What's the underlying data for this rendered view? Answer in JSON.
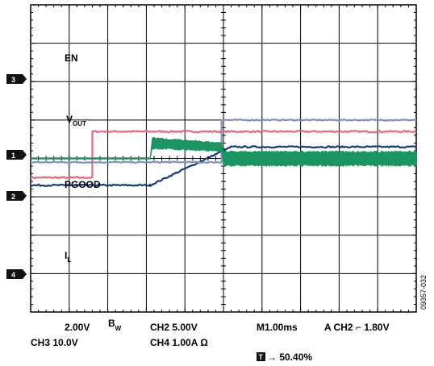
{
  "chart_data": {
    "type": "line",
    "grid": true,
    "grid_divisions": {
      "x": 10,
      "y": 8
    },
    "x_unit": "ms",
    "series": [
      {
        "name": "EN",
        "marker": "3",
        "color": "#e8667e",
        "x": [
          0,
          1.6,
          1.6,
          10
        ],
        "y": [
          -0.5,
          -0.5,
          0.7,
          0.7
        ],
        "noise": 0.02
      },
      {
        "name": "V_OUT",
        "marker": "1",
        "color": "#123c7c",
        "x": [
          0,
          3.1,
          5.2,
          10
        ],
        "y": [
          -0.7,
          -0.7,
          0.3,
          0.3
        ],
        "noise": 0.02
      },
      {
        "name": "PGOOD",
        "marker": "2",
        "color": "#7f92c0",
        "x": [
          0,
          4.95,
          4.95,
          10
        ],
        "y": [
          -0.1,
          -0.1,
          1.0,
          1.0
        ],
        "noise": 0.015
      },
      {
        "name": "I_L",
        "marker": "4",
        "color": "#1a9461",
        "x": [
          0,
          3.1,
          3.15,
          4.95,
          5.0,
          10
        ],
        "y": [
          0,
          0,
          0.4,
          0.3,
          0,
          0
        ],
        "ripple": [
          0.02,
          0.02,
          0.15,
          0.12,
          0.2,
          0.2
        ]
      }
    ]
  },
  "labels": {
    "en": "EN",
    "vout_main": "V",
    "vout_sub": "OUT",
    "pgood": "PGOOD",
    "il_main": "I",
    "il_sub": "L"
  },
  "markers": {
    "ch3": "3",
    "ch1": "1",
    "ch2": "2",
    "ch4": "4"
  },
  "readouts": {
    "ch1_scale": "2.00V",
    "bw_main": "B",
    "bw_sub": "W",
    "ch2_scale": "CH2  5.00V",
    "timebase": "M1.00ms",
    "trigger": "A  CH2 ⌐ 1.80V",
    "ch3_scale": "CH3  10.0V",
    "ch4_scale": "CH4  1.00A Ω",
    "trigger_pos_icon": "T",
    "trigger_pos": "→ 50.40%"
  },
  "figure_id": "09357-032"
}
